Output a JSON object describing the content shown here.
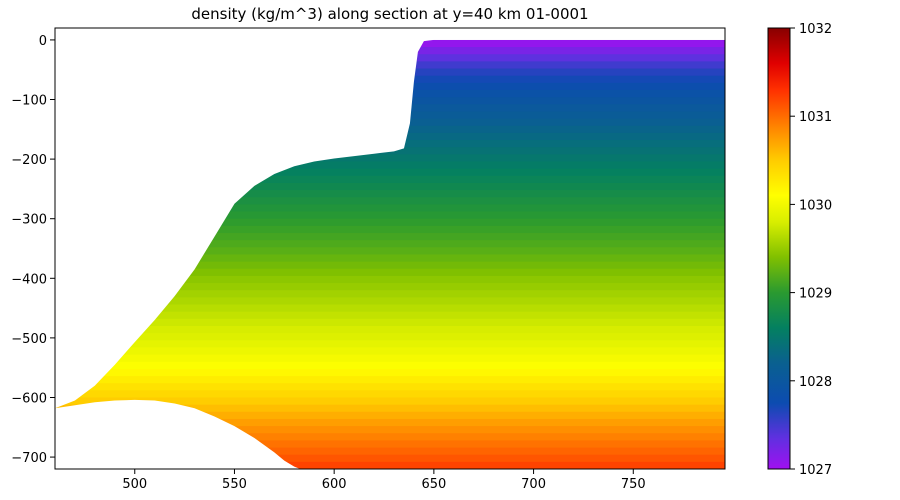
{
  "chart_data": {
    "type": "heatmap",
    "title": "density (kg/m^3) along section at y=40 km 01-0001",
    "xlabel": "",
    "ylabel": "",
    "xlim": [
      460,
      796
    ],
    "ylim": [
      -720,
      20
    ],
    "x_ticks": [
      500,
      550,
      600,
      650,
      700,
      750
    ],
    "y_ticks": [
      0,
      -100,
      -200,
      -300,
      -400,
      -500,
      -600,
      -700
    ],
    "colorbar": {
      "range": [
        1027,
        1032
      ],
      "ticks": [
        1027,
        1028,
        1029,
        1030,
        1031,
        1032
      ],
      "colormap": [
        {
          "value": 1027.0,
          "color": "#a010f0"
        },
        {
          "value": 1027.35,
          "color": "#6030e0"
        },
        {
          "value": 1027.75,
          "color": "#0c4cb0"
        },
        {
          "value": 1028.2,
          "color": "#0a6090"
        },
        {
          "value": 1028.6,
          "color": "#048060"
        },
        {
          "value": 1029.0,
          "color": "#2a9a30"
        },
        {
          "value": 1029.4,
          "color": "#80c000"
        },
        {
          "value": 1029.8,
          "color": "#d8ee00"
        },
        {
          "value": 1030.1,
          "color": "#ffff00"
        },
        {
          "value": 1030.5,
          "color": "#ffcc00"
        },
        {
          "value": 1030.85,
          "color": "#ff8a00"
        },
        {
          "value": 1031.3,
          "color": "#ff3000"
        },
        {
          "value": 1031.6,
          "color": "#e00000"
        },
        {
          "value": 1032.0,
          "color": "#880000"
        }
      ]
    },
    "bathymetry": {
      "x": [
        460,
        470,
        480,
        490,
        500,
        510,
        520,
        530,
        540,
        550,
        560,
        570,
        580,
        590,
        600,
        610,
        620,
        630,
        635,
        638,
        640,
        642,
        645,
        650,
        700,
        750,
        796
      ],
      "depth": [
        -618,
        -605,
        -580,
        -545,
        -507,
        -470,
        -430,
        -385,
        -330,
        -275,
        -245,
        -225,
        -212,
        -204,
        -199,
        -195,
        -191,
        -187,
        -182,
        -140,
        -70,
        -20,
        -2,
        0,
        0,
        0,
        0
      ]
    },
    "cavity_bottom": {
      "x": [
        460,
        470,
        480,
        490,
        500,
        510,
        520,
        530,
        540,
        550,
        560,
        570,
        575,
        580,
        583
      ],
      "depth": [
        -618,
        -613,
        -608,
        -605,
        -604,
        -605,
        -610,
        -618,
        -632,
        -648,
        -668,
        -692,
        -706,
        -716,
        -720
      ]
    },
    "density_profile": {
      "depth": [
        0,
        -50,
        -100,
        -150,
        -200,
        -250,
        -300,
        -350,
        -400,
        -450,
        -500,
        -550,
        -600,
        -650,
        -700,
        -720
      ],
      "density": [
        1027.0,
        1027.6,
        1027.95,
        1028.25,
        1028.5,
        1028.75,
        1029.0,
        1029.2,
        1029.45,
        1029.65,
        1029.85,
        1030.1,
        1030.45,
        1030.8,
        1031.1,
        1031.25
      ]
    }
  }
}
